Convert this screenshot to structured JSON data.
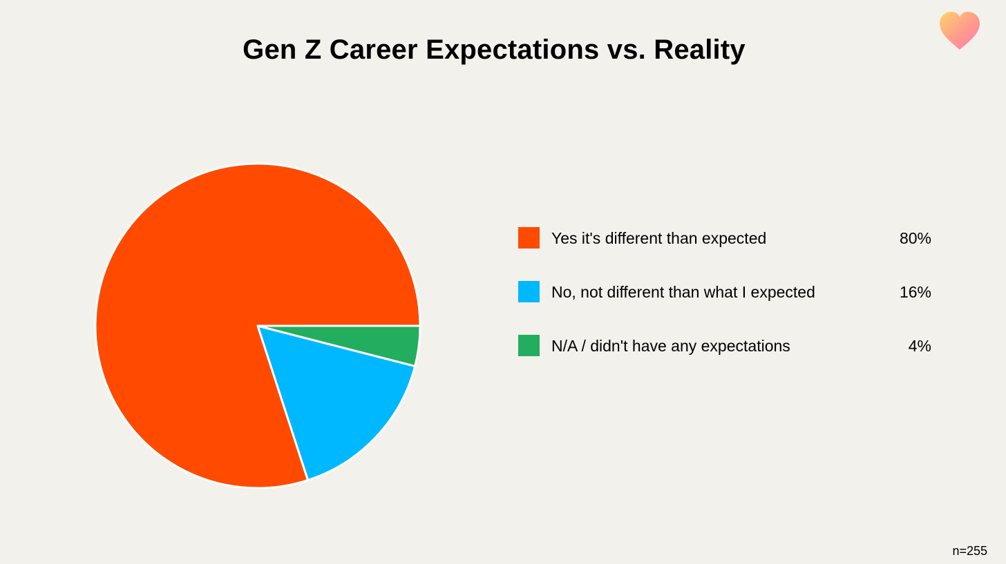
{
  "chart_data": {
    "type": "pie",
    "title": "Gen Z Career Expectations vs. Reality",
    "categories": [
      "Yes it's different than expected",
      "No, not different than what I expected",
      "N/A / didn't have any expectations"
    ],
    "values": [
      80,
      16,
      4
    ],
    "value_labels": [
      "80%",
      "16%",
      "4%"
    ],
    "colors": [
      "#ff4a00",
      "#00b8ff",
      "#22ad5f"
    ],
    "legend_position": "right",
    "note": "n=255"
  },
  "logo": {
    "icon": "heart-icon",
    "colors": [
      "#ffd36b",
      "#ff9a8c",
      "#ff7bb8"
    ]
  }
}
